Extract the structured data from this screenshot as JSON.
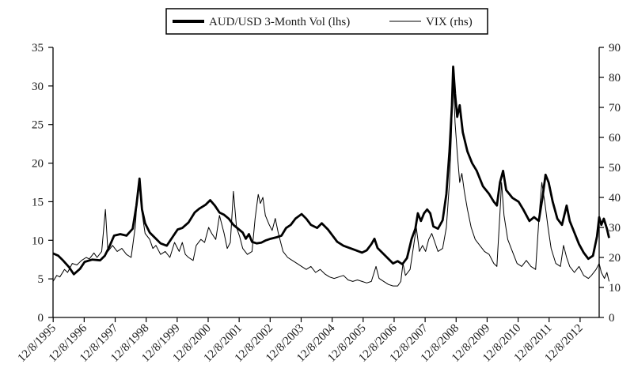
{
  "chart_data": {
    "type": "line",
    "title": "",
    "xlabel": "",
    "ylabel_left": "",
    "ylabel_right": "",
    "x_tick_labels": [
      "12/8/1995",
      "12/8/1996",
      "12/8/1997",
      "12/8/1998",
      "12/8/1999",
      "12/8/2000",
      "12/8/2001",
      "12/8/2002",
      "12/8/2003",
      "12/8/2004",
      "12/8/2005",
      "12/8/2006",
      "12/8/2007",
      "12/8/2008",
      "12/8/2009",
      "12/8/2010",
      "12/8/2011",
      "12/8/2012"
    ],
    "x_range": [
      1995.93,
      2013.55
    ],
    "ylim_left": [
      0,
      35
    ],
    "ylim_right": [
      0,
      90
    ],
    "y_ticks_left": [
      0,
      5,
      10,
      15,
      20,
      25,
      30,
      35
    ],
    "y_ticks_right": [
      0,
      10,
      20,
      30,
      40,
      50,
      60,
      70,
      80,
      90
    ],
    "grid": false,
    "legend_position": "top-center",
    "series": [
      {
        "name": "AUD/USD 3-Month Vol (lhs)",
        "axis": "left",
        "color": "#000000",
        "style": "thick",
        "points": [
          [
            1995.93,
            8.3
          ],
          [
            1996.1,
            8.0
          ],
          [
            1996.25,
            7.4
          ],
          [
            1996.45,
            6.5
          ],
          [
            1996.6,
            5.6
          ],
          [
            1996.8,
            6.3
          ],
          [
            1996.95,
            7.2
          ],
          [
            1997.2,
            7.5
          ],
          [
            1997.45,
            7.4
          ],
          [
            1997.6,
            8.0
          ],
          [
            1997.75,
            9.2
          ],
          [
            1997.9,
            10.6
          ],
          [
            1998.1,
            10.8
          ],
          [
            1998.3,
            10.6
          ],
          [
            1998.5,
            11.5
          ],
          [
            1998.62,
            14.5
          ],
          [
            1998.72,
            18.0
          ],
          [
            1998.8,
            14.0
          ],
          [
            1998.9,
            12.2
          ],
          [
            1999.05,
            11.0
          ],
          [
            1999.2,
            10.4
          ],
          [
            1999.4,
            9.6
          ],
          [
            1999.6,
            9.3
          ],
          [
            1999.8,
            10.5
          ],
          [
            1999.95,
            11.4
          ],
          [
            2000.1,
            11.6
          ],
          [
            2000.3,
            12.3
          ],
          [
            2000.5,
            13.6
          ],
          [
            2000.65,
            14.1
          ],
          [
            2000.85,
            14.6
          ],
          [
            2001.0,
            15.2
          ],
          [
            2001.15,
            14.5
          ],
          [
            2001.3,
            13.6
          ],
          [
            2001.45,
            13.3
          ],
          [
            2001.6,
            12.8
          ],
          [
            2001.75,
            12.0
          ],
          [
            2001.9,
            11.5
          ],
          [
            2002.05,
            11.0
          ],
          [
            2002.15,
            10.2
          ],
          [
            2002.25,
            10.8
          ],
          [
            2002.35,
            9.8
          ],
          [
            2002.5,
            9.6
          ],
          [
            2002.65,
            9.7
          ],
          [
            2002.8,
            10.0
          ],
          [
            2002.95,
            10.2
          ],
          [
            2003.15,
            10.4
          ],
          [
            2003.3,
            10.6
          ],
          [
            2003.45,
            11.6
          ],
          [
            2003.6,
            12.0
          ],
          [
            2003.75,
            12.8
          ],
          [
            2003.95,
            13.4
          ],
          [
            2004.1,
            12.8
          ],
          [
            2004.25,
            12.0
          ],
          [
            2004.45,
            11.6
          ],
          [
            2004.6,
            12.2
          ],
          [
            2004.8,
            11.4
          ],
          [
            2004.95,
            10.6
          ],
          [
            2005.1,
            9.8
          ],
          [
            2005.3,
            9.3
          ],
          [
            2005.5,
            9.0
          ],
          [
            2005.7,
            8.7
          ],
          [
            2005.9,
            8.4
          ],
          [
            2006.05,
            8.7
          ],
          [
            2006.2,
            9.5
          ],
          [
            2006.3,
            10.2
          ],
          [
            2006.4,
            9.0
          ],
          [
            2006.6,
            8.2
          ],
          [
            2006.75,
            7.6
          ],
          [
            2006.9,
            7.0
          ],
          [
            2007.05,
            7.3
          ],
          [
            2007.2,
            6.9
          ],
          [
            2007.35,
            7.7
          ],
          [
            2007.5,
            10.2
          ],
          [
            2007.62,
            11.5
          ],
          [
            2007.7,
            13.5
          ],
          [
            2007.8,
            12.5
          ],
          [
            2007.9,
            13.5
          ],
          [
            2008.0,
            14.0
          ],
          [
            2008.1,
            13.5
          ],
          [
            2008.2,
            11.8
          ],
          [
            2008.35,
            11.5
          ],
          [
            2008.5,
            12.6
          ],
          [
            2008.62,
            16.0
          ],
          [
            2008.72,
            21.5
          ],
          [
            2008.8,
            27.5
          ],
          [
            2008.84,
            32.5
          ],
          [
            2008.9,
            29.0
          ],
          [
            2008.97,
            26.0
          ],
          [
            2009.05,
            27.5
          ],
          [
            2009.15,
            24.0
          ],
          [
            2009.3,
            21.5
          ],
          [
            2009.45,
            20.0
          ],
          [
            2009.6,
            19.0
          ],
          [
            2009.8,
            17.0
          ],
          [
            2010.0,
            16.0
          ],
          [
            2010.15,
            15.0
          ],
          [
            2010.25,
            14.5
          ],
          [
            2010.35,
            17.5
          ],
          [
            2010.45,
            19.0
          ],
          [
            2010.55,
            16.5
          ],
          [
            2010.75,
            15.5
          ],
          [
            2010.95,
            15.0
          ],
          [
            2011.1,
            14.0
          ],
          [
            2011.3,
            12.5
          ],
          [
            2011.45,
            13.0
          ],
          [
            2011.6,
            12.5
          ],
          [
            2011.72,
            15.5
          ],
          [
            2011.82,
            18.5
          ],
          [
            2011.92,
            17.5
          ],
          [
            2012.05,
            15.0
          ],
          [
            2012.2,
            12.8
          ],
          [
            2012.35,
            12.0
          ],
          [
            2012.5,
            14.5
          ],
          [
            2012.6,
            12.5
          ],
          [
            2012.75,
            11.0
          ],
          [
            2012.9,
            9.5
          ],
          [
            2013.05,
            8.4
          ],
          [
            2013.2,
            7.6
          ],
          [
            2013.35,
            8.0
          ],
          [
            2013.48,
            10.5
          ],
          [
            2013.55,
            13.0
          ],
          [
            2013.62,
            12.0
          ],
          [
            2013.7,
            12.8
          ],
          [
            2013.8,
            11.5
          ],
          [
            2013.87,
            10.3
          ]
        ]
      },
      {
        "name": "VIX (rhs)",
        "axis": "right",
        "color": "#000000",
        "style": "thin",
        "points": [
          [
            1995.93,
            12.0
          ],
          [
            1996.05,
            14.0
          ],
          [
            1996.15,
            13.5
          ],
          [
            1996.3,
            16.0
          ],
          [
            1996.4,
            15.0
          ],
          [
            1996.55,
            18.0
          ],
          [
            1996.7,
            17.5
          ],
          [
            1996.85,
            19.0
          ],
          [
            1997.0,
            20.0
          ],
          [
            1997.1,
            19.5
          ],
          [
            1997.25,
            21.5
          ],
          [
            1997.35,
            20.0
          ],
          [
            1997.5,
            22.0
          ],
          [
            1997.62,
            36.0
          ],
          [
            1997.7,
            22.0
          ],
          [
            1997.85,
            24.0
          ],
          [
            1998.0,
            22.0
          ],
          [
            1998.15,
            23.0
          ],
          [
            1998.3,
            21.0
          ],
          [
            1998.45,
            20.0
          ],
          [
            1998.58,
            30.0
          ],
          [
            1998.65,
            40.0
          ],
          [
            1998.72,
            45.0
          ],
          [
            1998.8,
            35.0
          ],
          [
            1998.9,
            28.0
          ],
          [
            1999.05,
            26.0
          ],
          [
            1999.15,
            23.0
          ],
          [
            1999.25,
            24.0
          ],
          [
            1999.4,
            21.0
          ],
          [
            1999.55,
            22.0
          ],
          [
            1999.7,
            20.0
          ],
          [
            1999.85,
            25.0
          ],
          [
            2000.0,
            22.0
          ],
          [
            2000.1,
            25.0
          ],
          [
            2000.2,
            21.0
          ],
          [
            2000.3,
            20.0
          ],
          [
            2000.45,
            19.0
          ],
          [
            2000.55,
            24.0
          ],
          [
            2000.7,
            26.0
          ],
          [
            2000.82,
            25.0
          ],
          [
            2000.95,
            30.0
          ],
          [
            2001.05,
            28.0
          ],
          [
            2001.18,
            26.0
          ],
          [
            2001.3,
            34.0
          ],
          [
            2001.45,
            28.0
          ],
          [
            2001.55,
            23.0
          ],
          [
            2001.65,
            25.0
          ],
          [
            2001.75,
            42.0
          ],
          [
            2001.85,
            30.0
          ],
          [
            2001.95,
            27.0
          ],
          [
            2002.05,
            23.0
          ],
          [
            2002.2,
            21.0
          ],
          [
            2002.35,
            22.0
          ],
          [
            2002.45,
            33.0
          ],
          [
            2002.55,
            41.0
          ],
          [
            2002.62,
            38.0
          ],
          [
            2002.7,
            40.0
          ],
          [
            2002.78,
            34.0
          ],
          [
            2002.9,
            31.0
          ],
          [
            2003.0,
            29.0
          ],
          [
            2003.1,
            33.0
          ],
          [
            2003.2,
            28.0
          ],
          [
            2003.35,
            22.0
          ],
          [
            2003.5,
            20.0
          ],
          [
            2003.65,
            19.0
          ],
          [
            2003.8,
            18.0
          ],
          [
            2003.95,
            17.0
          ],
          [
            2004.1,
            16.0
          ],
          [
            2004.25,
            17.0
          ],
          [
            2004.4,
            15.0
          ],
          [
            2004.55,
            16.0
          ],
          [
            2004.7,
            14.5
          ],
          [
            2004.85,
            13.5
          ],
          [
            2005.0,
            13.0
          ],
          [
            2005.15,
            13.5
          ],
          [
            2005.3,
            14.0
          ],
          [
            2005.45,
            12.5
          ],
          [
            2005.6,
            12.0
          ],
          [
            2005.75,
            12.5
          ],
          [
            2005.9,
            12.0
          ],
          [
            2006.05,
            11.5
          ],
          [
            2006.2,
            12.0
          ],
          [
            2006.35,
            17.0
          ],
          [
            2006.45,
            13.0
          ],
          [
            2006.6,
            12.0
          ],
          [
            2006.75,
            11.0
          ],
          [
            2006.9,
            10.5
          ],
          [
            2007.05,
            10.5
          ],
          [
            2007.15,
            12.0
          ],
          [
            2007.22,
            18.0
          ],
          [
            2007.3,
            14.0
          ],
          [
            2007.45,
            16.0
          ],
          [
            2007.58,
            25.0
          ],
          [
            2007.65,
            30.0
          ],
          [
            2007.75,
            22.0
          ],
          [
            2007.85,
            24.0
          ],
          [
            2007.95,
            22.0
          ],
          [
            2008.05,
            26.0
          ],
          [
            2008.15,
            28.0
          ],
          [
            2008.25,
            25.0
          ],
          [
            2008.35,
            22.0
          ],
          [
            2008.5,
            23.0
          ],
          [
            2008.62,
            30.0
          ],
          [
            2008.72,
            45.0
          ],
          [
            2008.78,
            60.0
          ],
          [
            2008.84,
            80.0
          ],
          [
            2008.9,
            65.0
          ],
          [
            2008.97,
            55.0
          ],
          [
            2009.05,
            45.0
          ],
          [
            2009.12,
            48.0
          ],
          [
            2009.2,
            42.0
          ],
          [
            2009.3,
            36.0
          ],
          [
            2009.42,
            30.0
          ],
          [
            2009.55,
            26.0
          ],
          [
            2009.7,
            24.0
          ],
          [
            2009.85,
            22.0
          ],
          [
            2010.0,
            21.0
          ],
          [
            2010.15,
            18.0
          ],
          [
            2010.25,
            17.0
          ],
          [
            2010.35,
            35.0
          ],
          [
            2010.4,
            45.0
          ],
          [
            2010.48,
            34.0
          ],
          [
            2010.6,
            26.0
          ],
          [
            2010.75,
            22.0
          ],
          [
            2010.9,
            18.0
          ],
          [
            2011.05,
            17.0
          ],
          [
            2011.2,
            19.0
          ],
          [
            2011.35,
            17.0
          ],
          [
            2011.5,
            16.0
          ],
          [
            2011.62,
            35.0
          ],
          [
            2011.7,
            45.0
          ],
          [
            2011.8,
            38.0
          ],
          [
            2011.9,
            30.0
          ],
          [
            2012.0,
            23.0
          ],
          [
            2012.15,
            18.0
          ],
          [
            2012.3,
            17.0
          ],
          [
            2012.4,
            24.0
          ],
          [
            2012.5,
            20.0
          ],
          [
            2012.6,
            17.0
          ],
          [
            2012.75,
            15.0
          ],
          [
            2012.9,
            17.0
          ],
          [
            2013.05,
            14.0
          ],
          [
            2013.2,
            13.0
          ],
          [
            2013.3,
            14.0
          ],
          [
            2013.45,
            16.0
          ],
          [
            2013.55,
            18.0
          ],
          [
            2013.62,
            15.0
          ],
          [
            2013.72,
            13.0
          ],
          [
            2013.8,
            15.0
          ],
          [
            2013.87,
            12.0
          ]
        ]
      }
    ]
  }
}
